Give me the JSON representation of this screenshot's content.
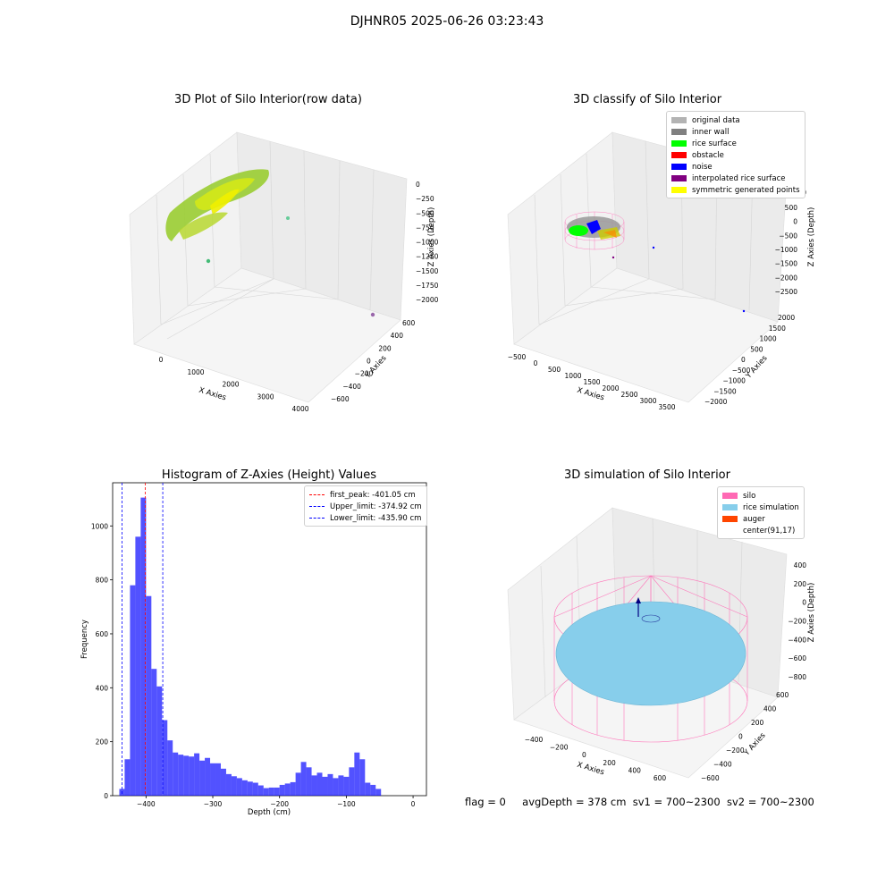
{
  "figure_title": "DJHNR05 2025-06-26 03:23:43",
  "panels": {
    "raw": {
      "title": "3D Plot of Silo Interior(row data)",
      "xlabel": "X Axies",
      "ylabel": "Y Axies",
      "zlabel": "Z Axies (Depth)",
      "x_ticks": [
        "0",
        "1000",
        "2000",
        "3000",
        "4000"
      ],
      "y_ticks": [
        "−600",
        "−400",
        "−200",
        "0",
        "200",
        "400",
        "600"
      ],
      "z_ticks": [
        "0",
        "−250",
        "−500",
        "−750",
        "−1000",
        "−1250",
        "−1500",
        "−1750",
        "−2000"
      ]
    },
    "classify": {
      "title": "3D classify of Silo Interior",
      "xlabel": "X Axies",
      "ylabel": "Y Axies",
      "zlabel": "Z Axies (Depth)",
      "x_ticks": [
        "−500",
        "0",
        "500",
        "1000",
        "1500",
        "2000",
        "2500",
        "3000",
        "3500"
      ],
      "y_ticks": [
        "−2000",
        "−1500",
        "−1000",
        "−500",
        "0",
        "500",
        "1000",
        "1500",
        "2000"
      ],
      "z_ticks": [
        "500",
        "0",
        "−500",
        "−1000",
        "−1500",
        "−2000",
        "−2500"
      ],
      "z_ticks_hidden": [
        "1000"
      ],
      "legend": [
        {
          "label": "original data",
          "color": "#b3b3b3"
        },
        {
          "label": "inner wall",
          "color": "#808080"
        },
        {
          "label": "rice surface",
          "color": "#00ff00"
        },
        {
          "label": "obstacle",
          "color": "#ff0000"
        },
        {
          "label": "noise",
          "color": "#0000ff"
        },
        {
          "label": "interpolated rice surface",
          "color": "#800080"
        },
        {
          "label": "symmetric generated points",
          "color": "#ffff00"
        }
      ]
    },
    "simulation": {
      "title": "3D simulation of Silo Interior",
      "xlabel": "X Axies",
      "ylabel": "Y Axies",
      "zlabel": "Z Axies (Depth)",
      "x_ticks": [
        "−400",
        "−200",
        "0",
        "200",
        "400",
        "600"
      ],
      "y_ticks": [
        "−600",
        "−400",
        "−200",
        "0",
        "200",
        "400",
        "600"
      ],
      "z_ticks": [
        "400",
        "200",
        "0",
        "−200",
        "−400",
        "−600",
        "−800"
      ],
      "legend": [
        {
          "label": "silo",
          "color": "#ff69b4"
        },
        {
          "label": "rice simulation",
          "color": "#87ceeb"
        },
        {
          "label": "auger",
          "color": "#ff4500"
        },
        {
          "label": "center(91,17)",
          "color": "#ffffff"
        }
      ]
    }
  },
  "chart_data": {
    "type": "bar",
    "title": "Histogram of Z-Axies (Height) Values",
    "xlabel": "Depth (cm)",
    "ylabel": "Frequency",
    "xlim": [
      -450,
      20
    ],
    "ylim": [
      0,
      1160
    ],
    "x_ticks": [
      -400,
      -300,
      -200,
      -100,
      0
    ],
    "y_ticks": [
      0,
      200,
      400,
      600,
      800,
      1000
    ],
    "bar_color": "#0000ff",
    "bin_width": 8,
    "bin_starts": [
      -440,
      -432,
      -424,
      -416,
      -408,
      -400,
      -392,
      -384,
      -376,
      -368,
      -360,
      -352,
      -344,
      -336,
      -328,
      -320,
      -312,
      -304,
      -296,
      -288,
      -280,
      -272,
      -264,
      -256,
      -248,
      -240,
      -232,
      -224,
      -216,
      -208,
      -200,
      -192,
      -184,
      -176,
      -168,
      -160,
      -152,
      -144,
      -136,
      -128,
      -120,
      -112,
      -104,
      -96,
      -88,
      -80,
      -72,
      -64,
      -56,
      -48,
      -40,
      -32,
      -24,
      -16,
      -8,
      0
    ],
    "values": [
      25,
      135,
      780,
      960,
      1105,
      740,
      470,
      405,
      280,
      205,
      160,
      152,
      148,
      145,
      157,
      130,
      140,
      120,
      120,
      100,
      80,
      72,
      65,
      57,
      52,
      48,
      38,
      28,
      30,
      30,
      40,
      45,
      50,
      85,
      125,
      105,
      75,
      85,
      70,
      80,
      65,
      75,
      70,
      105,
      160,
      135,
      48,
      40,
      25,
      0,
      0,
      0,
      0,
      0,
      0,
      0
    ],
    "lines": [
      {
        "label": "first_peak: -401.05 cm",
        "x": -401.05,
        "color": "#ff0000"
      },
      {
        "label": "Upper_limit: -374.92 cm",
        "x": -374.92,
        "color": "#0000ff"
      },
      {
        "label": "Lower_limit: -435.90 cm",
        "x": -435.9,
        "color": "#0000ff"
      }
    ]
  },
  "status": {
    "flag": "flag = 0",
    "avg_depth": "avgDepth = 378 cm",
    "sv1": "sv1 = 700~2300",
    "sv2": "sv2 = 700~2300"
  }
}
